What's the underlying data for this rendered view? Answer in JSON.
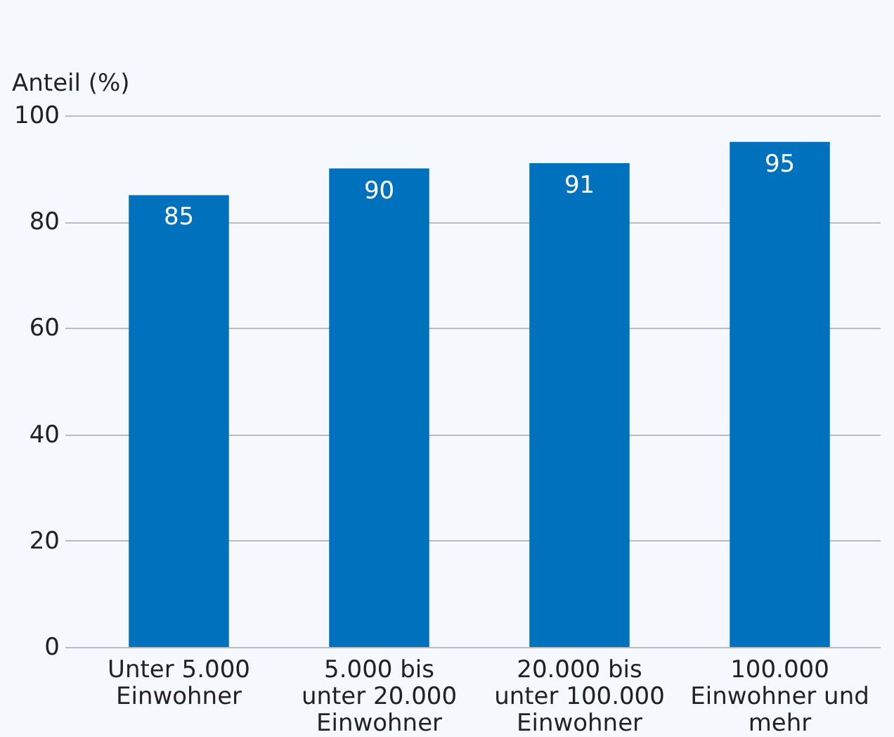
{
  "chart_data": {
    "type": "bar",
    "ylabel": "Anteil (%)",
    "categories": [
      "Unter 5.000 Einwohner",
      "5.000 bis unter 20.000 Einwohner",
      "20.000 bis unter 100.000 Einwohner",
      "100.000 Einwohner und mehr"
    ],
    "values": [
      85,
      90,
      91,
      95
    ],
    "color": "#0071bc",
    "ylim": [
      0,
      100
    ],
    "yticks": [
      0,
      20,
      40,
      60,
      80,
      100
    ],
    "grid": "y",
    "data_labels": true
  }
}
